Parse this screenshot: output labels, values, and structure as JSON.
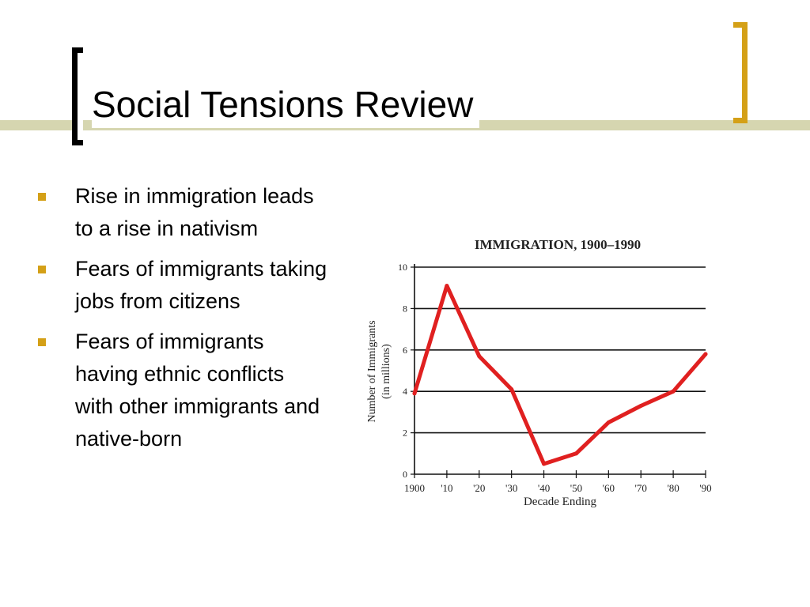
{
  "slide": {
    "title": "Social Tensions Review",
    "bullets": [
      "Rise in immigration leads to a rise in nativism",
      "Fears of immigrants taking jobs from citizens",
      "Fears of immigrants having ethnic conflicts with other immigrants and native-born"
    ],
    "colors": {
      "accent": "#d4a017",
      "bar": "#d6d6b0",
      "line": "#e02020"
    }
  },
  "chart_data": {
    "type": "line",
    "title": "IMMIGRATION, 1900–1990",
    "xlabel": "Decade Ending",
    "ylabel": "Number of Immigrants (in millions)",
    "ylabel_lines": [
      "Number of Immigrants",
      "(in millions)"
    ],
    "categories": [
      "1900",
      "'10",
      "'20",
      "'30",
      "'40",
      "'50",
      "'60",
      "'70",
      "'80",
      "'90"
    ],
    "values": [
      3.9,
      9.1,
      5.7,
      4.1,
      0.5,
      1.0,
      2.5,
      3.3,
      4.0,
      5.8
    ],
    "ylim": [
      0,
      10
    ],
    "yticks": [
      "0",
      "2",
      "4",
      "6",
      "8",
      "10"
    ],
    "grid": true
  }
}
